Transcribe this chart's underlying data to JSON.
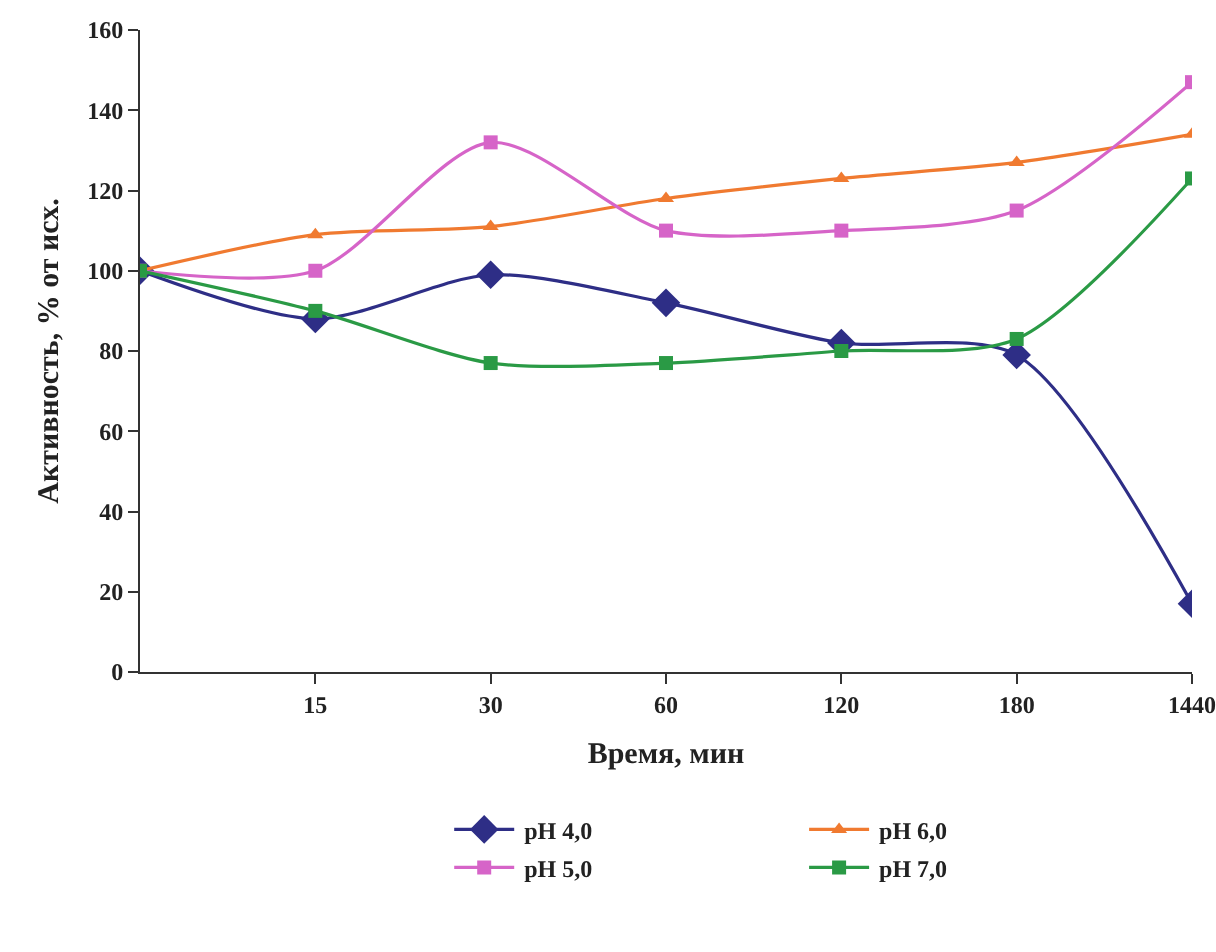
{
  "chart_data": {
    "type": "line",
    "xlabel": "Время, мин",
    "ylabel": "Активность, % от исх.",
    "categories": [
      null,
      "15",
      "30",
      "60",
      "120",
      "180",
      "1440"
    ],
    "ylim": [
      0,
      160
    ],
    "yticks": [
      0,
      20,
      40,
      60,
      80,
      100,
      120,
      140,
      160
    ],
    "grid": false,
    "legend": "bottom",
    "series": [
      {
        "name": "pH 4,0",
        "color": "#2e2e86",
        "marker": "diamond",
        "values": [
          100,
          88,
          99,
          92,
          82,
          79,
          17
        ]
      },
      {
        "name": "pH 6,0",
        "color": "#f07a30",
        "marker": "triangle",
        "values": [
          100,
          109,
          111,
          118,
          123,
          127,
          134
        ]
      },
      {
        "name": "pH 5,0",
        "color": "#d664c8",
        "marker": "square",
        "values": [
          100,
          100,
          132,
          110,
          110,
          115,
          147
        ]
      },
      {
        "name": "pH 7,0",
        "color": "#2a9a45",
        "marker": "square",
        "values": [
          100,
          90,
          77,
          77,
          80,
          83,
          123
        ]
      }
    ]
  }
}
